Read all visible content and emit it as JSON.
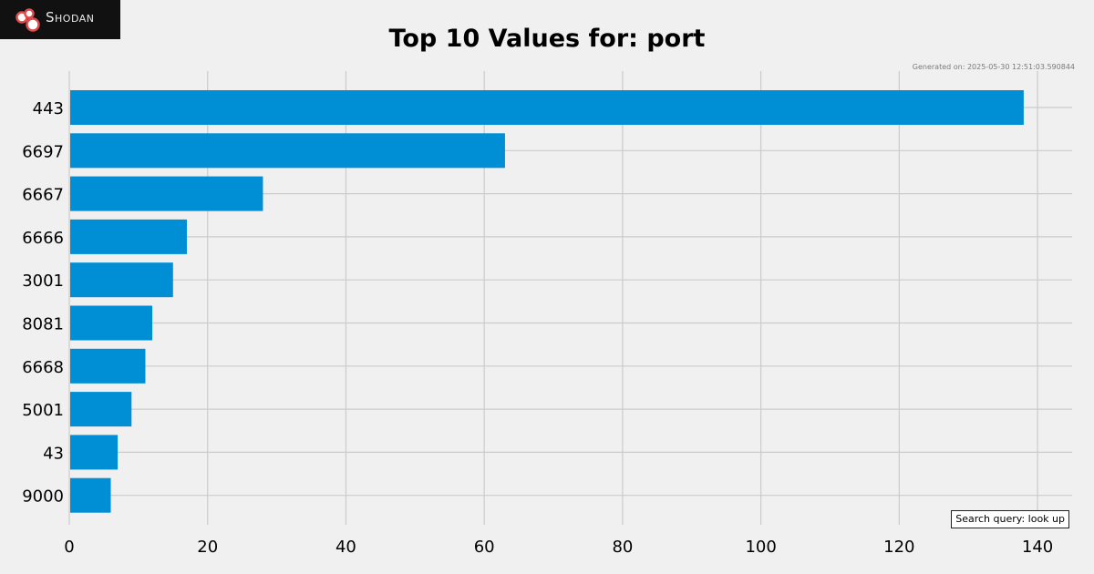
{
  "brand": {
    "name": "Shodan",
    "icon": "shodan-logo-icon"
  },
  "header": {
    "generated_note": "Generated on: 2025-05-30 12:51:03.590844"
  },
  "footer": {
    "search_query": "Search query: look up"
  },
  "colors": {
    "background": "#f0f0f0",
    "bar": "#008fd5",
    "grid": "#cbcbcb",
    "text": "#000000",
    "logo_background": "#111111",
    "logo_accent": "#e04b4b"
  },
  "chart_data": {
    "type": "bar",
    "orientation": "horizontal",
    "title": "Top 10 Values for: port",
    "xlabel": "",
    "ylabel": "",
    "categories": [
      "443",
      "6697",
      "6667",
      "6666",
      "3001",
      "8081",
      "6668",
      "5001",
      "43",
      "9000"
    ],
    "values": [
      138,
      63,
      28,
      17,
      15,
      12,
      11,
      9,
      7,
      6
    ],
    "xlim": [
      0,
      145
    ],
    "xticks": [
      0,
      20,
      40,
      60,
      80,
      100,
      120,
      140
    ],
    "grid": true,
    "legend": "none"
  }
}
